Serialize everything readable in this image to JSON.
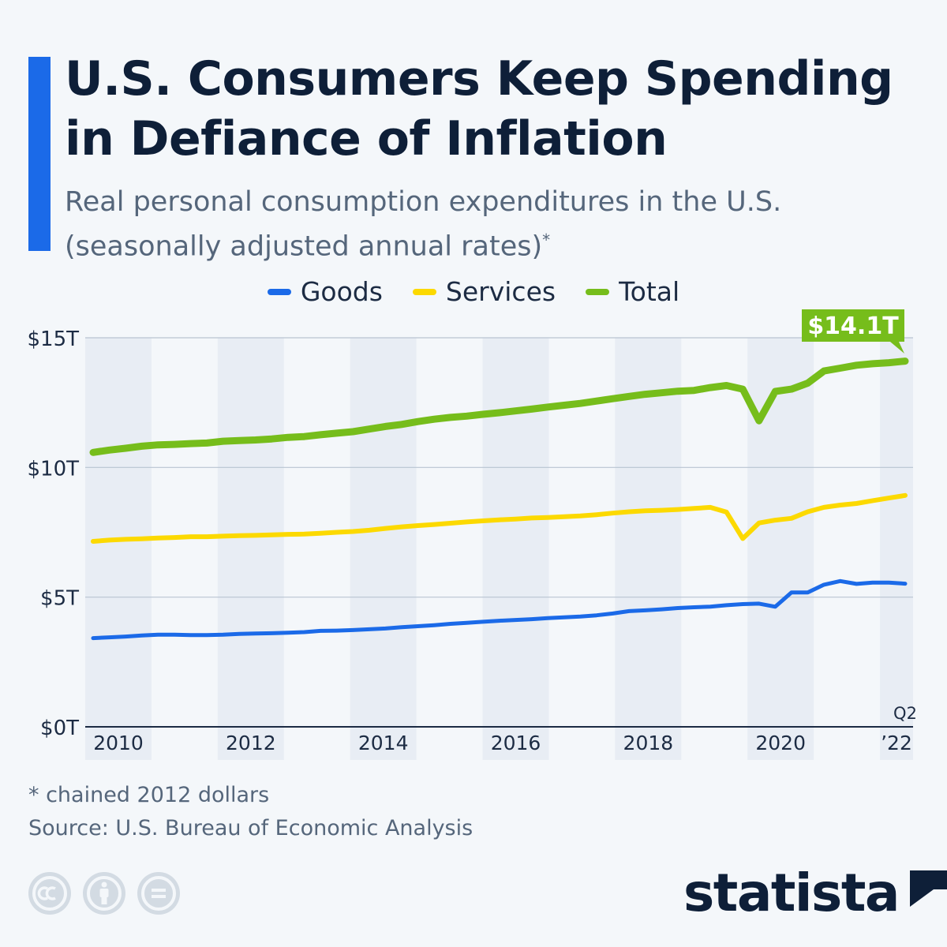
{
  "title": "U.S. Consumers Keep Spending in Defiance of Inflation",
  "subtitle": "Real personal consumption expenditures in the U.S. (seasonally adjusted annual rates)",
  "subtitle_marker": "*",
  "footnote": "* chained 2012 dollars",
  "source": "Source: U.S. Bureau of Economic Analysis",
  "brand": {
    "name": "statista",
    "accent_color": "#1b6ae8",
    "text_color": "#0e1f38"
  },
  "license_icons": [
    "cc-icon",
    "attribution-icon",
    "no-derivatives-icon"
  ],
  "chart_data": {
    "type": "line",
    "title": "Real personal consumption expenditures in the U.S.",
    "ylabel": "",
    "xlabel": "",
    "ylim": [
      0,
      15
    ],
    "y_ticks": [
      0,
      5,
      10,
      15
    ],
    "y_tick_labels": [
      "$0T",
      "$5T",
      "$10T",
      "$15T"
    ],
    "x_tick_labels": [
      "2010",
      "2012",
      "2014",
      "2016",
      "2018",
      "2020",
      "’22"
    ],
    "x_tick_quarters": [
      0,
      8,
      16,
      24,
      32,
      40,
      49
    ],
    "last_tick_note": "Q2",
    "x": [
      "2009-Q4",
      "2010-Q1",
      "2010-Q2",
      "2010-Q3",
      "2010-Q4",
      "2011-Q1",
      "2011-Q2",
      "2011-Q3",
      "2011-Q4",
      "2012-Q1",
      "2012-Q2",
      "2012-Q3",
      "2012-Q4",
      "2013-Q1",
      "2013-Q2",
      "2013-Q3",
      "2013-Q4",
      "2014-Q1",
      "2014-Q2",
      "2014-Q3",
      "2014-Q4",
      "2015-Q1",
      "2015-Q2",
      "2015-Q3",
      "2015-Q4",
      "2016-Q1",
      "2016-Q2",
      "2016-Q3",
      "2016-Q4",
      "2017-Q1",
      "2017-Q2",
      "2017-Q3",
      "2017-Q4",
      "2018-Q1",
      "2018-Q2",
      "2018-Q3",
      "2018-Q4",
      "2019-Q1",
      "2019-Q2",
      "2019-Q3",
      "2019-Q4",
      "2020-Q1",
      "2020-Q2",
      "2020-Q3",
      "2020-Q4",
      "2021-Q1",
      "2021-Q2",
      "2021-Q3",
      "2021-Q4",
      "2022-Q1",
      "2022-Q2"
    ],
    "legend_position": "top-center",
    "series": [
      {
        "name": "Goods",
        "color": "#1b6ae8",
        "values": [
          3.42,
          3.45,
          3.48,
          3.52,
          3.55,
          3.55,
          3.54,
          3.54,
          3.55,
          3.58,
          3.6,
          3.61,
          3.63,
          3.65,
          3.7,
          3.71,
          3.73,
          3.76,
          3.79,
          3.84,
          3.88,
          3.92,
          3.97,
          4.01,
          4.05,
          4.09,
          4.12,
          4.15,
          4.19,
          4.22,
          4.25,
          4.3,
          4.37,
          4.46,
          4.49,
          4.53,
          4.58,
          4.61,
          4.63,
          4.69,
          4.73,
          4.75,
          4.63,
          5.18,
          5.18,
          5.48,
          5.62,
          5.51,
          5.56,
          5.56,
          5.52
        ]
      },
      {
        "name": "Services",
        "color": "#fcd900",
        "values": [
          7.15,
          7.2,
          7.23,
          7.25,
          7.28,
          7.3,
          7.33,
          7.33,
          7.35,
          7.37,
          7.38,
          7.4,
          7.42,
          7.43,
          7.46,
          7.5,
          7.53,
          7.58,
          7.65,
          7.71,
          7.76,
          7.8,
          7.85,
          7.9,
          7.94,
          7.98,
          8.01,
          8.05,
          8.07,
          8.1,
          8.13,
          8.18,
          8.24,
          8.29,
          8.33,
          8.35,
          8.38,
          8.42,
          8.46,
          8.28,
          7.26,
          7.86,
          7.97,
          8.04,
          8.29,
          8.46,
          8.55,
          8.61,
          8.72,
          8.82,
          8.92
        ]
      },
      {
        "name": "Total",
        "color": "#76bd1b",
        "values": [
          10.58,
          10.67,
          10.74,
          10.82,
          10.87,
          10.89,
          10.92,
          10.94,
          11.01,
          11.04,
          11.06,
          11.1,
          11.16,
          11.19,
          11.26,
          11.32,
          11.38,
          11.48,
          11.58,
          11.66,
          11.77,
          11.86,
          11.93,
          11.98,
          12.05,
          12.11,
          12.18,
          12.25,
          12.33,
          12.4,
          12.47,
          12.56,
          12.65,
          12.74,
          12.82,
          12.88,
          12.94,
          12.97,
          13.08,
          13.16,
          13.02,
          11.8,
          12.93,
          13.02,
          13.25,
          13.72,
          13.83,
          13.94,
          14.0,
          14.04,
          14.1
        ]
      }
    ],
    "callout": {
      "series": "Total",
      "label": "$14.1T",
      "value": 14.1
    }
  }
}
